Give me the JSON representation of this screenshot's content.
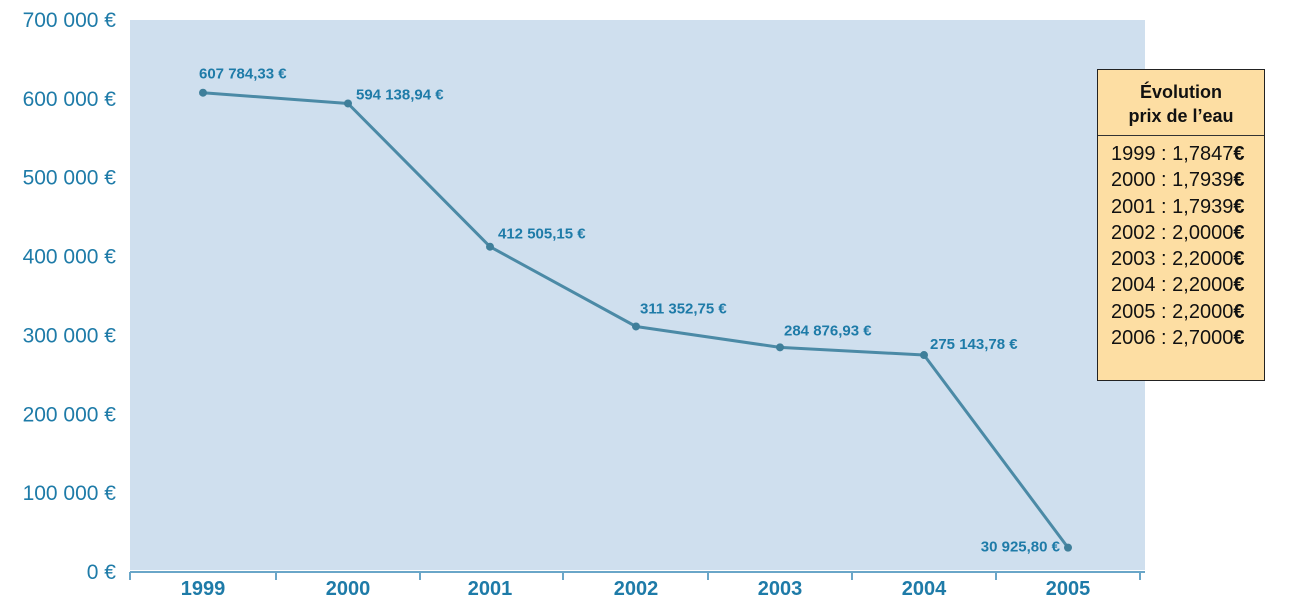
{
  "chart_data": {
    "type": "line",
    "x": [
      "1999",
      "2000",
      "2001",
      "2002",
      "2003",
      "2004",
      "2005"
    ],
    "series": [
      {
        "values": [
          607784.33,
          594138.94,
          412505.15,
          311352.75,
          284876.93,
          275143.78,
          30925.8
        ]
      }
    ],
    "data_labels": [
      "607 784,33 €",
      "594 138,94 €",
      "412 505,15 €",
      "311 352,75 €",
      "284 876,93 €",
      "275 143,78 €",
      "30 925,80 €"
    ],
    "y_ticks": [
      "0 €",
      "100 000 €",
      "200 000 €",
      "300 000 €",
      "400 000 €",
      "500 000 €",
      "600 000 €",
      "700 000 €"
    ],
    "y_tick_values": [
      0,
      100000,
      200000,
      300000,
      400000,
      500000,
      600000,
      700000
    ],
    "ylim": [
      0,
      700000
    ],
    "grid": false,
    "colors": {
      "plot_background": "#cfdfee",
      "line": "#4b8aa6",
      "text": "#1e7ba8"
    }
  },
  "legend_box": {
    "title_line1": "Évolution",
    "title_line2": "prix de l’eau",
    "background": "#fddea3",
    "rows": [
      {
        "year": "1999",
        "price": "1,7847",
        "currency": "€"
      },
      {
        "year": "2000",
        "price": "1,7939",
        "currency": "€"
      },
      {
        "year": "2001",
        "price": "1,7939",
        "currency": "€"
      },
      {
        "year": "2002",
        "price": "2,0000",
        "currency": "€"
      },
      {
        "year": "2003",
        "price": "2,2000",
        "currency": "€"
      },
      {
        "year": "2004",
        "price": "2,2000",
        "currency": "€"
      },
      {
        "year": "2005",
        "price": "2,2000",
        "currency": "€"
      },
      {
        "year": "2006",
        "price": "2,7000",
        "currency": "€"
      }
    ]
  }
}
